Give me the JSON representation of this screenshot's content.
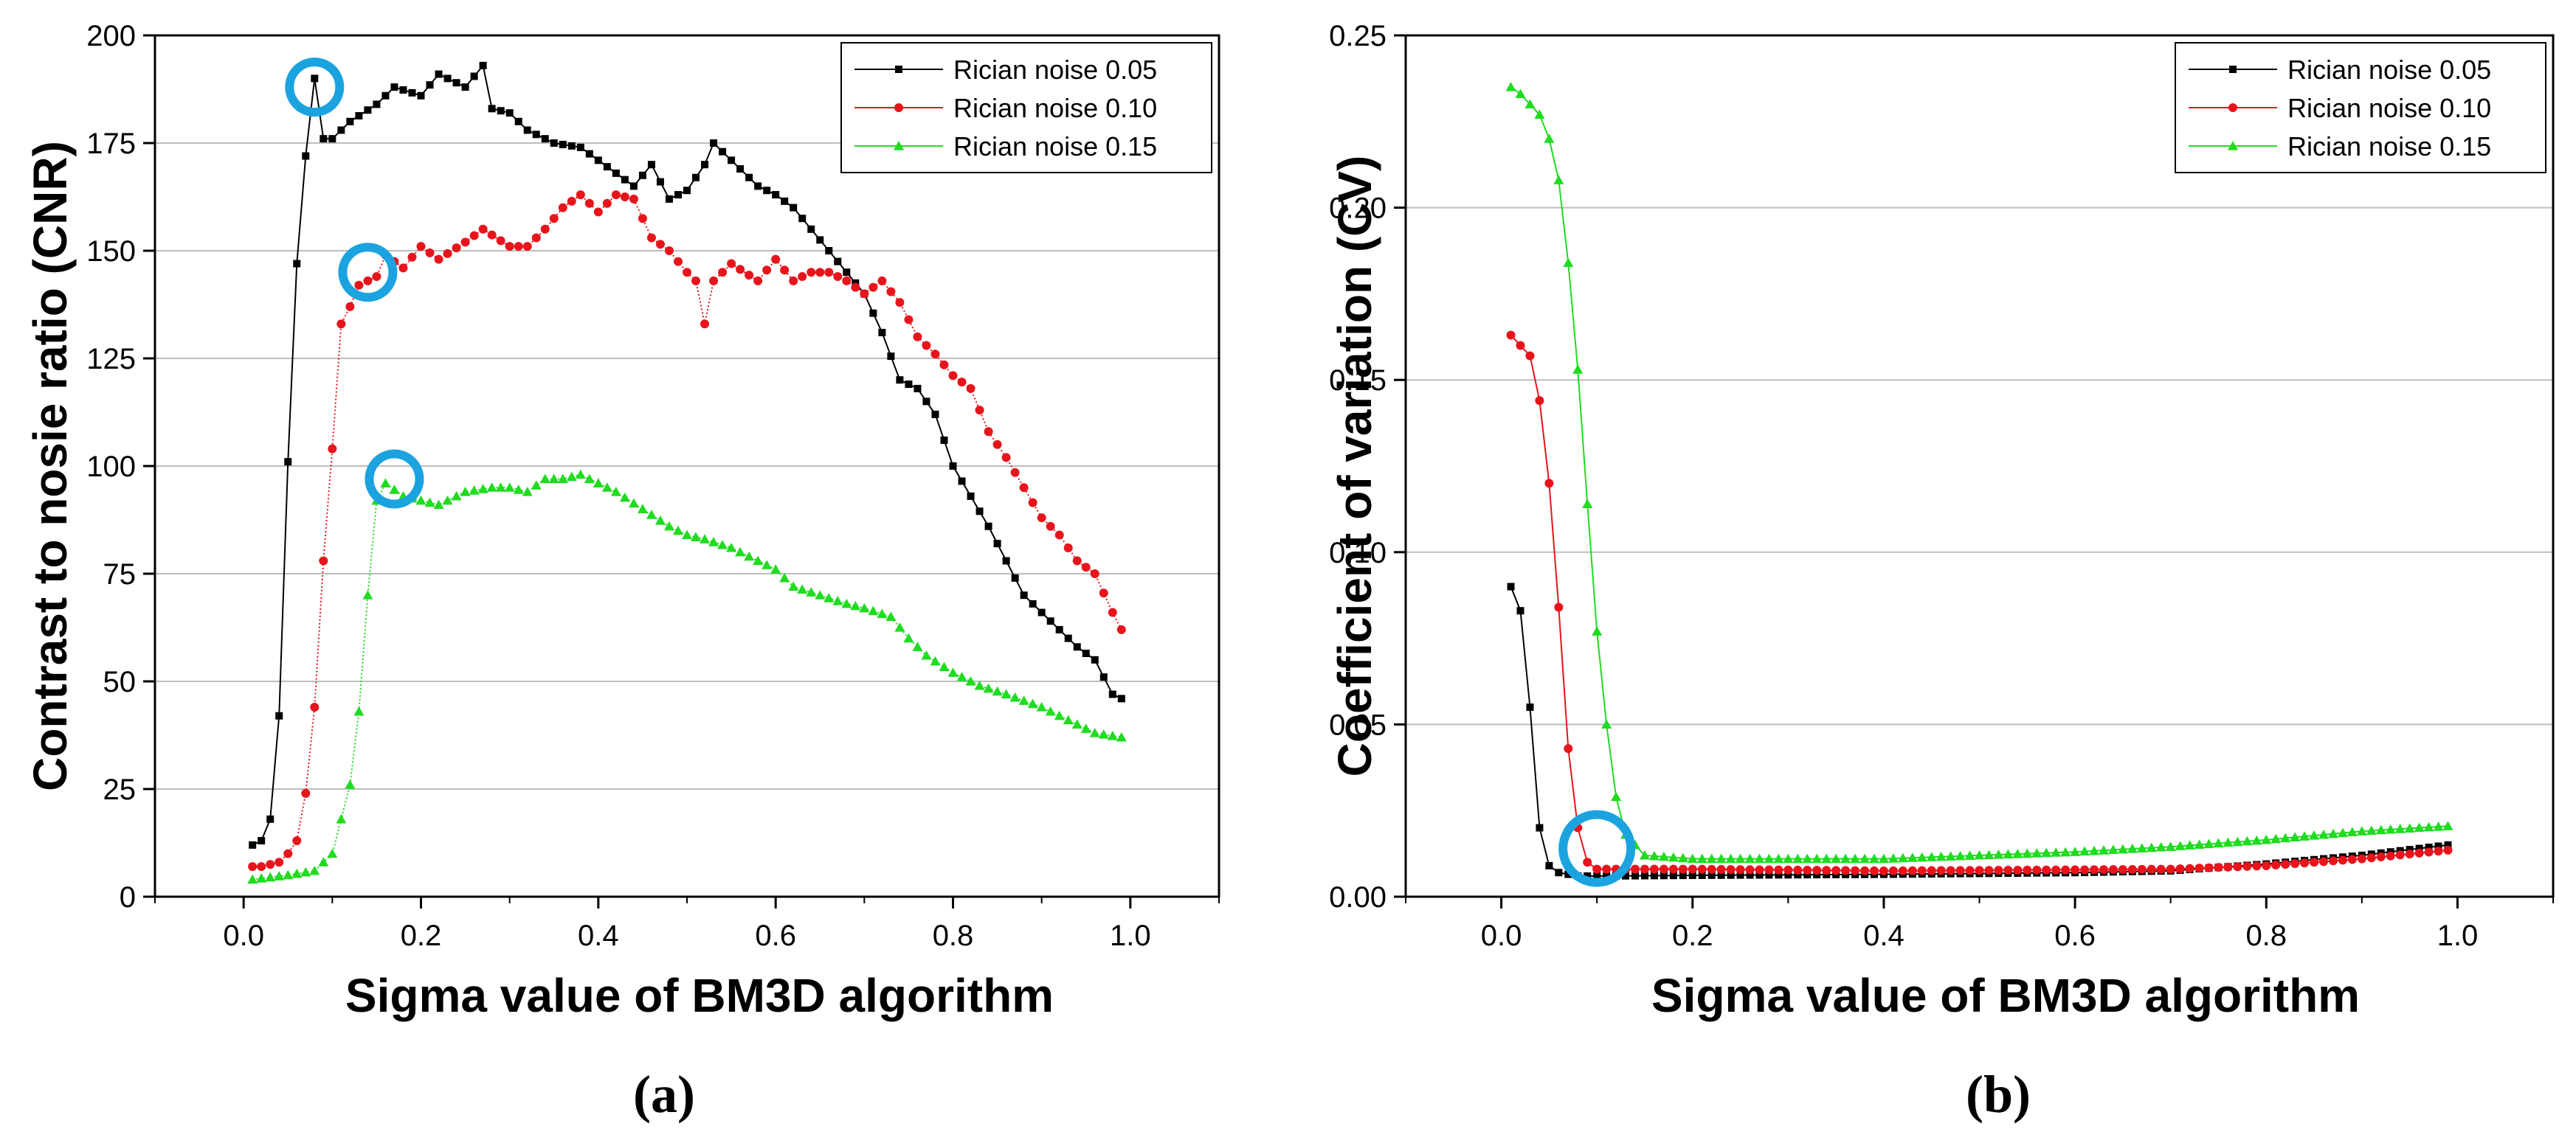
{
  "chart_data": [
    {
      "panel_label": "(a)",
      "type": "line",
      "title": "",
      "xlabel": "Sigma value of BM3D algorithm",
      "ylabel": "Contrast to nosie ratio (CNR)",
      "xlim": [
        -0.1,
        1.1
      ],
      "ylim": [
        0,
        200
      ],
      "xticks": [
        0.0,
        0.2,
        0.4,
        0.6,
        0.8,
        1.0
      ],
      "xtick_labels": [
        "0.0",
        "0.2",
        "0.4",
        "0.6",
        "0.8",
        "1.0"
      ],
      "yticks": [
        0,
        25,
        50,
        75,
        100,
        125,
        150,
        175,
        200
      ],
      "ytick_labels": [
        "0",
        "25",
        "50",
        "75",
        "100",
        "125",
        "150",
        "175",
        "200"
      ],
      "grid": "horizontal",
      "legend_position": "top-right",
      "series": [
        {
          "name": "Rician noise 0.05",
          "color": "#000000",
          "marker": "square",
          "anchors": [
            [
              0.01,
              12
            ],
            [
              0.02,
              13
            ],
            [
              0.03,
              18
            ],
            [
              0.04,
              42
            ],
            [
              0.05,
              101
            ],
            [
              0.06,
              147
            ],
            [
              0.07,
              172
            ],
            [
              0.08,
              190
            ],
            [
              0.09,
              176
            ],
            [
              0.1,
              176
            ],
            [
              0.12,
              180
            ],
            [
              0.15,
              184
            ],
            [
              0.17,
              188
            ],
            [
              0.2,
              186
            ],
            [
              0.22,
              191
            ],
            [
              0.25,
              188
            ],
            [
              0.27,
              193
            ],
            [
              0.28,
              183
            ],
            [
              0.3,
              182
            ],
            [
              0.32,
              178
            ],
            [
              0.35,
              175
            ],
            [
              0.38,
              174
            ],
            [
              0.4,
              171
            ],
            [
              0.42,
              168
            ],
            [
              0.44,
              165
            ],
            [
              0.46,
              170
            ],
            [
              0.48,
              162
            ],
            [
              0.5,
              164
            ],
            [
              0.52,
              170
            ],
            [
              0.53,
              175
            ],
            [
              0.55,
              171
            ],
            [
              0.58,
              165
            ],
            [
              0.6,
              163
            ],
            [
              0.62,
              160
            ],
            [
              0.64,
              155
            ],
            [
              0.66,
              150
            ],
            [
              0.68,
              145
            ],
            [
              0.7,
              140
            ],
            [
              0.72,
              131
            ],
            [
              0.74,
              120
            ],
            [
              0.76,
              118
            ],
            [
              0.78,
              112
            ],
            [
              0.8,
              100
            ],
            [
              0.82,
              93
            ],
            [
              0.84,
              86
            ],
            [
              0.86,
              78
            ],
            [
              0.88,
              70
            ],
            [
              0.9,
              66
            ],
            [
              0.92,
              62
            ],
            [
              0.94,
              58
            ],
            [
              0.96,
              55
            ],
            [
              0.98,
              47
            ],
            [
              0.99,
              46
            ]
          ]
        },
        {
          "name": "Rician noise 0.10",
          "color": "#e8141c",
          "marker": "circle",
          "anchors": [
            [
              0.01,
              7
            ],
            [
              0.02,
              7
            ],
            [
              0.04,
              8
            ],
            [
              0.05,
              10
            ],
            [
              0.06,
              13
            ],
            [
              0.07,
              24
            ],
            [
              0.08,
              44
            ],
            [
              0.09,
              78
            ],
            [
              0.1,
              104
            ],
            [
              0.11,
              133
            ],
            [
              0.12,
              137
            ],
            [
              0.13,
              142
            ],
            [
              0.14,
              143
            ],
            [
              0.15,
              144
            ],
            [
              0.16,
              149
            ],
            [
              0.18,
              146
            ],
            [
              0.2,
              151
            ],
            [
              0.22,
              148
            ],
            [
              0.25,
              152
            ],
            [
              0.27,
              155
            ],
            [
              0.3,
              151
            ],
            [
              0.32,
              151
            ],
            [
              0.34,
              155
            ],
            [
              0.36,
              160
            ],
            [
              0.38,
              163
            ],
            [
              0.4,
              159
            ],
            [
              0.42,
              163
            ],
            [
              0.44,
              162
            ],
            [
              0.46,
              153
            ],
            [
              0.48,
              150
            ],
            [
              0.5,
              145
            ],
            [
              0.51,
              143
            ],
            [
              0.52,
              133
            ],
            [
              0.53,
              143
            ],
            [
              0.55,
              147
            ],
            [
              0.58,
              143
            ],
            [
              0.6,
              148
            ],
            [
              0.62,
              143
            ],
            [
              0.64,
              145
            ],
            [
              0.66,
              145
            ],
            [
              0.68,
              143
            ],
            [
              0.7,
              140
            ],
            [
              0.72,
              143
            ],
            [
              0.74,
              138
            ],
            [
              0.76,
              130
            ],
            [
              0.78,
              126
            ],
            [
              0.8,
              121
            ],
            [
              0.82,
              118
            ],
            [
              0.84,
              108
            ],
            [
              0.86,
              102
            ],
            [
              0.88,
              95
            ],
            [
              0.9,
              88
            ],
            [
              0.92,
              84
            ],
            [
              0.94,
              78
            ],
            [
              0.96,
              75
            ],
            [
              0.98,
              66
            ],
            [
              0.99,
              62
            ]
          ]
        },
        {
          "name": "Rician noise 0.15",
          "color": "#1fdc1f",
          "marker": "triangle",
          "anchors": [
            [
              0.01,
              4
            ],
            [
              0.05,
              5
            ],
            [
              0.08,
              6
            ],
            [
              0.1,
              10
            ],
            [
              0.12,
              26
            ],
            [
              0.13,
              43
            ],
            [
              0.14,
              70
            ],
            [
              0.15,
              92
            ],
            [
              0.16,
              96
            ],
            [
              0.18,
              93
            ],
            [
              0.2,
              92
            ],
            [
              0.22,
              91
            ],
            [
              0.25,
              94
            ],
            [
              0.28,
              95
            ],
            [
              0.3,
              95
            ],
            [
              0.32,
              94
            ],
            [
              0.34,
              97
            ],
            [
              0.36,
              97
            ],
            [
              0.38,
              98
            ],
            [
              0.4,
              96
            ],
            [
              0.42,
              94
            ],
            [
              0.45,
              90
            ],
            [
              0.48,
              86
            ],
            [
              0.5,
              84
            ],
            [
              0.52,
              83
            ],
            [
              0.55,
              81
            ],
            [
              0.58,
              78
            ],
            [
              0.6,
              76
            ],
            [
              0.62,
              72
            ],
            [
              0.65,
              70
            ],
            [
              0.68,
              68
            ],
            [
              0.7,
              67
            ],
            [
              0.73,
              65
            ],
            [
              0.75,
              60
            ],
            [
              0.77,
              56
            ],
            [
              0.8,
              52
            ],
            [
              0.83,
              49
            ],
            [
              0.86,
              47
            ],
            [
              0.9,
              44
            ],
            [
              0.93,
              41
            ],
            [
              0.96,
              38
            ],
            [
              0.99,
              37
            ]
          ]
        }
      ],
      "highlight_markers": [
        [
          0.08,
          188
        ],
        [
          0.14,
          145
        ],
        [
          0.17,
          97
        ]
      ]
    },
    {
      "panel_label": "(b)",
      "type": "line",
      "title": "",
      "xlabel": "Sigma value of BM3D algorithm",
      "ylabel": "Coefficient of variation (CV)",
      "xlim": [
        -0.1,
        1.1
      ],
      "ylim": [
        0,
        0.25
      ],
      "xticks": [
        0.0,
        0.2,
        0.4,
        0.6,
        0.8,
        1.0
      ],
      "xtick_labels": [
        "0.0",
        "0.2",
        "0.4",
        "0.6",
        "0.8",
        "1.0"
      ],
      "yticks": [
        0,
        0.05,
        0.1,
        0.15,
        0.2,
        0.25
      ],
      "ytick_labels": [
        "0.00",
        "0.05",
        "0.10",
        "0.15",
        "0.20",
        "0.25"
      ],
      "grid": "horizontal",
      "legend_position": "top-right",
      "series": [
        {
          "name": "Rician noise 0.05",
          "color": "#000000",
          "marker": "square",
          "anchors": [
            [
              0.01,
              0.09
            ],
            [
              0.02,
              0.083
            ],
            [
              0.03,
              0.055
            ],
            [
              0.04,
              0.02
            ],
            [
              0.05,
              0.009
            ],
            [
              0.06,
              0.007
            ],
            [
              0.08,
              0.006
            ],
            [
              0.1,
              0.006
            ],
            [
              0.2,
              0.0062
            ],
            [
              0.4,
              0.0065
            ],
            [
              0.6,
              0.007
            ],
            [
              0.7,
              0.0075
            ],
            [
              0.8,
              0.0095
            ],
            [
              0.9,
              0.012
            ],
            [
              0.99,
              0.015
            ]
          ]
        },
        {
          "name": "Rician noise 0.10",
          "color": "#e8141c",
          "marker": "circle",
          "anchors": [
            [
              0.01,
              0.163
            ],
            [
              0.02,
              0.16
            ],
            [
              0.03,
              0.157
            ],
            [
              0.04,
              0.144
            ],
            [
              0.05,
              0.12
            ],
            [
              0.06,
              0.084
            ],
            [
              0.07,
              0.043
            ],
            [
              0.08,
              0.02
            ],
            [
              0.09,
              0.01
            ],
            [
              0.1,
              0.008
            ],
            [
              0.2,
              0.008
            ],
            [
              0.4,
              0.0075
            ],
            [
              0.6,
              0.0078
            ],
            [
              0.7,
              0.008
            ],
            [
              0.8,
              0.009
            ],
            [
              0.9,
              0.011
            ],
            [
              0.99,
              0.0135
            ]
          ]
        },
        {
          "name": "Rician noise 0.15",
          "color": "#1fdc1f",
          "marker": "triangle",
          "anchors": [
            [
              0.01,
              0.235
            ],
            [
              0.02,
              0.233
            ],
            [
              0.03,
              0.23
            ],
            [
              0.04,
              0.227
            ],
            [
              0.05,
              0.22
            ],
            [
              0.06,
              0.208
            ],
            [
              0.07,
              0.184
            ],
            [
              0.08,
              0.153
            ],
            [
              0.09,
              0.114
            ],
            [
              0.1,
              0.077
            ],
            [
              0.11,
              0.05
            ],
            [
              0.12,
              0.029
            ],
            [
              0.13,
              0.018
            ],
            [
              0.15,
              0.012
            ],
            [
              0.2,
              0.011
            ],
            [
              0.4,
              0.011
            ],
            [
              0.6,
              0.013
            ],
            [
              0.7,
              0.0145
            ],
            [
              0.8,
              0.0165
            ],
            [
              0.9,
              0.019
            ],
            [
              0.99,
              0.0205
            ]
          ]
        }
      ],
      "highlight_markers": [
        [
          0.1,
          0.014
        ]
      ]
    }
  ],
  "colors": {
    "highlight_ring": "#1ba3e0",
    "grid": "#bdbdbd"
  }
}
